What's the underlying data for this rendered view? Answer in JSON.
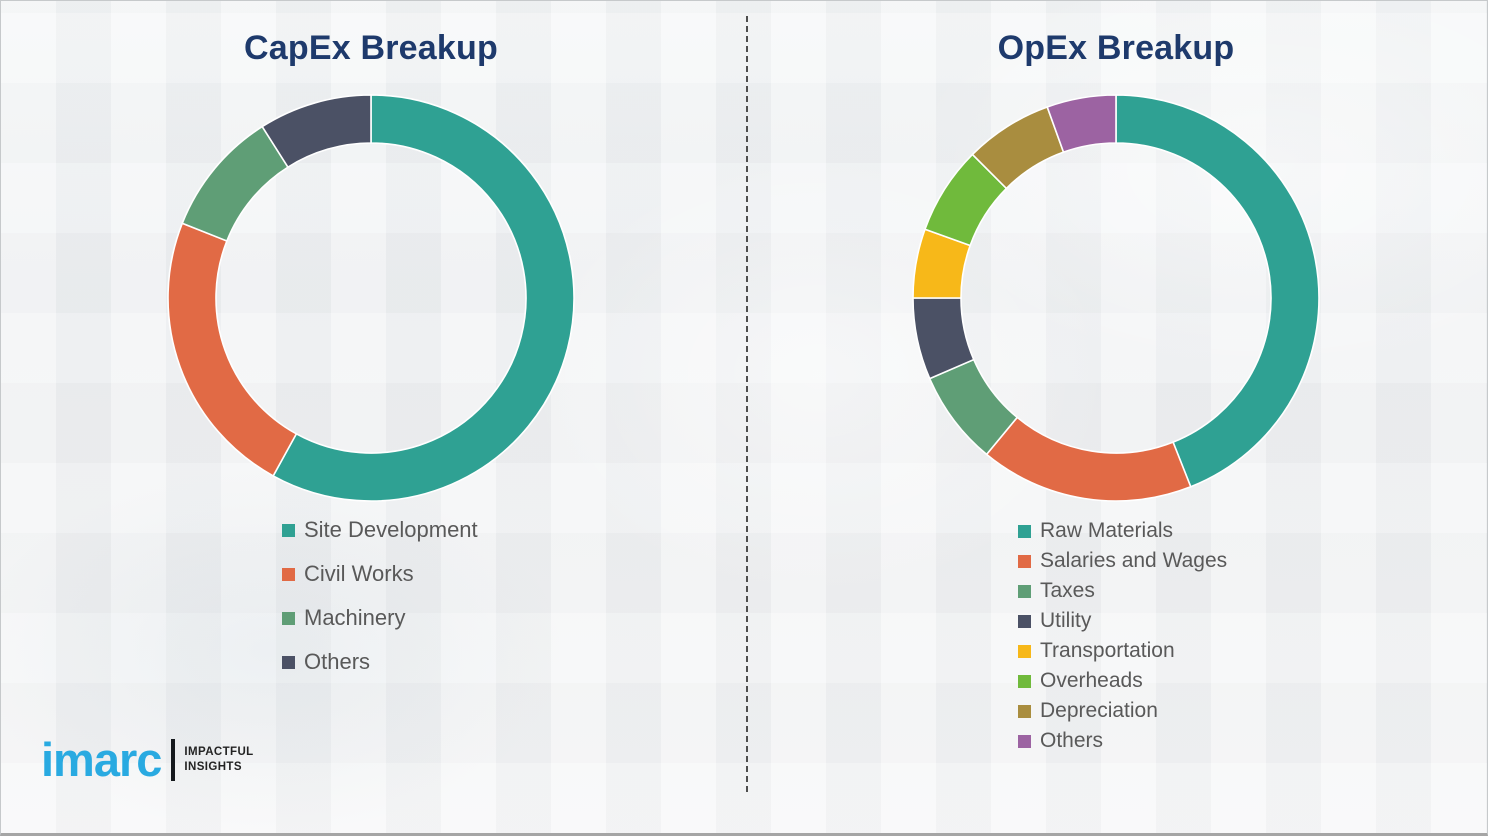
{
  "chart_data": [
    {
      "type": "pie",
      "subtype": "donut",
      "title": "CapEx Breakup",
      "categories": [
        "Site Development",
        "Civil Works",
        "Machinery",
        "Others"
      ],
      "values": [
        58,
        23,
        10,
        9
      ],
      "colors": [
        "#2fa193",
        "#e16a45",
        "#5f9e76",
        "#4b5165"
      ],
      "legend_position": "below-left",
      "start_angle_deg": 0,
      "direction": "clockwise"
    },
    {
      "type": "pie",
      "subtype": "donut",
      "title": "OpEx Breakup",
      "categories": [
        "Raw Materials",
        "Salaries and Wages",
        "Taxes",
        "Utility",
        "Transportation",
        "Overheads",
        "Depreciation",
        "Others"
      ],
      "values": [
        44,
        17,
        7.5,
        6.5,
        5.5,
        7,
        7,
        5.5
      ],
      "colors": [
        "#2fa193",
        "#e16a45",
        "#5f9e76",
        "#4b5165",
        "#f7b819",
        "#70ba3c",
        "#a98d3f",
        "#9c63a2"
      ],
      "legend_position": "below-left",
      "start_angle_deg": 0,
      "direction": "clockwise"
    }
  ],
  "logo": {
    "brand": "imarc",
    "tagline_line1": "IMPACTFUL",
    "tagline_line2": "INSIGHTS",
    "brand_color": "#29aae1"
  }
}
